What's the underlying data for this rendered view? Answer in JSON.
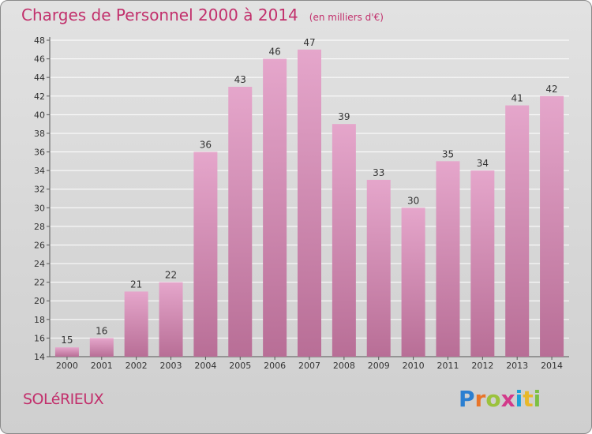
{
  "title": "Charges de Personnel 2000 à 2014",
  "subtitle": "(en milliers d'€)",
  "town": "SOLéRIEUX",
  "logo": {
    "letters": [
      "P",
      "r",
      "o",
      "x",
      "i",
      "t",
      "i"
    ],
    "colors": [
      "#2b7fd1",
      "#e8752a",
      "#9bc23c",
      "#d23a8a",
      "#1aa0d8",
      "#e8b82a",
      "#7cc043"
    ]
  },
  "colors": {
    "accent": "#c2306c",
    "bar_top": "#e5a6cb",
    "bar_bottom": "#b86e96"
  },
  "chart_data": {
    "type": "bar",
    "categories": [
      "2000",
      "2001",
      "2002",
      "2003",
      "2004",
      "2005",
      "2006",
      "2007",
      "2008",
      "2009",
      "2010",
      "2011",
      "2012",
      "2013",
      "2014"
    ],
    "values": [
      15,
      16,
      21,
      22,
      36,
      43,
      46,
      47,
      39,
      33,
      30,
      35,
      34,
      41,
      42
    ],
    "title": "Charges de Personnel 2000 à 2014",
    "xlabel": "",
    "ylabel": "",
    "ylim": [
      14,
      48
    ],
    "yticks": [
      14,
      16,
      18,
      20,
      22,
      24,
      26,
      28,
      30,
      32,
      34,
      36,
      38,
      40,
      42,
      44,
      46,
      48
    ],
    "grid": true,
    "data_labels": true
  }
}
